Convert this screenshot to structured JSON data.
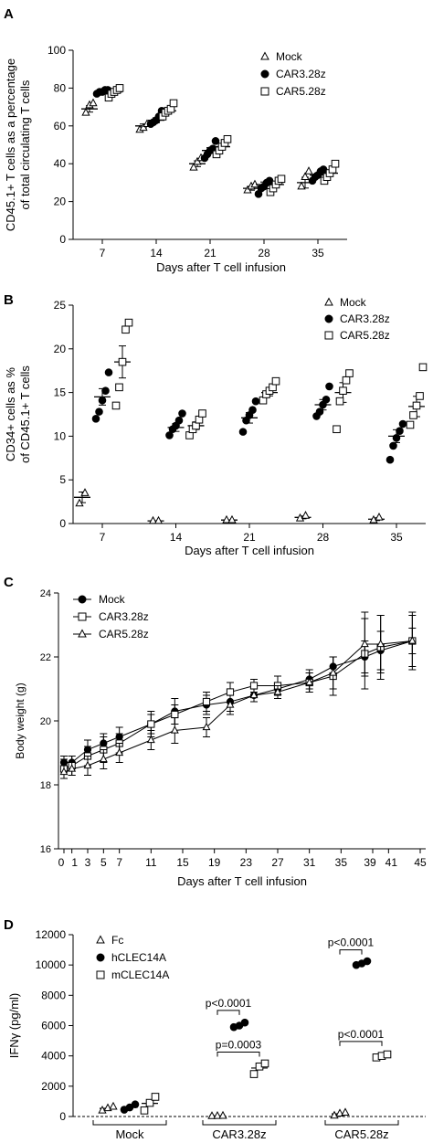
{
  "chart_data": [
    {
      "panel_label": "A",
      "type": "scatter",
      "xlabel": "Days after T cell infusion",
      "ylabel": "CD45.1+ T cells as a percentage of total circulating T cells",
      "ylabel_lines": [
        "CD45.1+ T cells as a percentage",
        "of total circulating T cells"
      ],
      "categories": [
        "7",
        "14",
        "21",
        "28",
        "35"
      ],
      "ylim": [
        0,
        100
      ],
      "yticks": [
        0,
        20,
        40,
        60,
        80,
        100
      ],
      "legend": "top-right",
      "series": [
        {
          "name": "Mock",
          "marker": "triangle-open",
          "means": [
            69,
            60,
            40,
            27,
            30
          ],
          "points": [
            [
              67,
              71,
              72
            ],
            [
              58,
              59,
              61
            ],
            [
              38,
              41,
              43
            ],
            [
              26,
              28,
              29
            ],
            [
              28,
              33,
              36
            ]
          ]
        },
        {
          "name": "CAR3.28z",
          "marker": "circle-filled",
          "means": [
            78,
            63,
            47,
            29,
            34
          ],
          "points": [
            [
              77,
              78,
              78,
              79,
              79
            ],
            [
              61,
              62,
              63,
              65,
              68
            ],
            [
              43,
              45,
              47,
              48,
              52
            ],
            [
              24,
              27,
              28,
              30,
              31
            ],
            [
              31,
              33,
              34,
              36,
              37
            ]
          ]
        },
        {
          "name": "CAR5.28z",
          "marker": "square-open",
          "means": [
            78,
            68,
            49,
            29,
            35
          ],
          "points": [
            [
              75,
              77,
              78,
              79,
              80
            ],
            [
              65,
              67,
              68,
              69,
              72
            ],
            [
              45,
              47,
              49,
              51,
              53
            ],
            [
              25,
              27,
              29,
              31,
              32
            ],
            [
              31,
              33,
              35,
              37,
              40
            ]
          ]
        }
      ]
    },
    {
      "panel_label": "B",
      "type": "scatter",
      "xlabel": "Days after T cell infusion",
      "ylabel": "CD34+ cells as % of CD45.1+ T cells",
      "ylabel_lines": [
        "CD34+ cells as %",
        "of CD45.1+ T cells"
      ],
      "categories": [
        "7",
        "14",
        "21",
        "28",
        "35"
      ],
      "ylim": [
        0,
        25
      ],
      "yticks": [
        0,
        5,
        10,
        15,
        20,
        25
      ],
      "legend": "top-right",
      "series": [
        {
          "name": "Mock",
          "marker": "triangle-open",
          "means": [
            3.0,
            0.3,
            0.4,
            0.7,
            0.5
          ],
          "points": [
            [
              2.3,
              3.5
            ],
            [
              0.3,
              0.3
            ],
            [
              0.4,
              0.4
            ],
            [
              0.6,
              0.9
            ],
            [
              0.4,
              0.7
            ]
          ]
        },
        {
          "name": "CAR3.28z",
          "marker": "circle-filled",
          "means": [
            14.5,
            11.0,
            12.1,
            13.6,
            10.0
          ],
          "points": [
            [
              12.0,
              12.8,
              14.1,
              15.2,
              17.3
            ],
            [
              10.1,
              10.8,
              11.2,
              11.8,
              12.6
            ],
            [
              10.5,
              11.8,
              12.4,
              13.0,
              14.0
            ],
            [
              12.3,
              12.8,
              13.6,
              14.2,
              15.7
            ],
            [
              7.3,
              8.9,
              9.8,
              10.6,
              11.4
            ]
          ]
        },
        {
          "name": "CAR5.28z",
          "marker": "square-open",
          "means": [
            18.5,
            11.2,
            15.0,
            15.0,
            13.4
          ],
          "points": [
            [
              13.5,
              15.6,
              18.5,
              22.2,
              23.0
            ],
            [
              10.1,
              10.8,
              11.2,
              11.9,
              12.6
            ],
            [
              14.1,
              14.8,
              15.2,
              15.6,
              16.3
            ],
            [
              10.8,
              14.0,
              15.2,
              16.4,
              17.2
            ],
            [
              11.3,
              12.4,
              13.5,
              14.6,
              17.9
            ]
          ]
        }
      ]
    },
    {
      "panel_label": "C",
      "type": "line",
      "xlabel": "Days after T cell infusion",
      "ylabel": "Body weight (g)",
      "x_tick_labels": [
        "0",
        "1",
        "3",
        "5",
        "7",
        "11",
        "15",
        "19",
        "23",
        "27",
        "31",
        "35",
        "39",
        "41",
        "45"
      ],
      "x_tick_values": [
        0,
        1,
        3,
        5,
        7,
        11,
        15,
        19,
        23,
        27,
        31,
        35,
        39,
        41,
        45
      ],
      "xlim": [
        0,
        45
      ],
      "ylim": [
        16,
        24
      ],
      "yticks": [
        16,
        18,
        20,
        22,
        24
      ],
      "legend": "top-left",
      "series": [
        {
          "name": "Mock",
          "marker": "circle-filled",
          "x": [
            0,
            1,
            3,
            5,
            7,
            11,
            14,
            18,
            21,
            24,
            27,
            31,
            34,
            38,
            40,
            44
          ],
          "y": [
            18.7,
            18.7,
            19.1,
            19.3,
            19.5,
            19.9,
            20.3,
            20.5,
            20.6,
            20.8,
            21.0,
            21.3,
            21.7,
            22.0,
            22.2,
            22.5
          ],
          "err": [
            0.2,
            0.2,
            0.3,
            0.3,
            0.3,
            0.4,
            0.4,
            0.3,
            0.3,
            0.2,
            0.2,
            0.3,
            0.3,
            0.5,
            0.6,
            0.4
          ]
        },
        {
          "name": "CAR3.28z",
          "marker": "square-open",
          "x": [
            0,
            1,
            3,
            5,
            7,
            11,
            14,
            18,
            21,
            24,
            27,
            31,
            34,
            38,
            40,
            44
          ],
          "y": [
            18.5,
            18.6,
            18.9,
            19.1,
            19.3,
            19.9,
            20.2,
            20.6,
            20.9,
            21.1,
            21.1,
            21.2,
            21.4,
            22.1,
            22.3,
            22.5
          ],
          "err": [
            0.3,
            0.3,
            0.3,
            0.4,
            0.3,
            0.3,
            0.3,
            0.3,
            0.3,
            0.2,
            0.3,
            0.3,
            0.6,
            1.1,
            1.0,
            0.9
          ]
        },
        {
          "name": "CAR5.28z",
          "marker": "triangle-open",
          "x": [
            0,
            1,
            3,
            5,
            7,
            11,
            14,
            18,
            21,
            24,
            27,
            31,
            34,
            38,
            40,
            44
          ],
          "y": [
            18.4,
            18.5,
            18.6,
            18.8,
            19.0,
            19.4,
            19.7,
            19.8,
            20.5,
            20.8,
            20.9,
            21.2,
            21.5,
            22.4,
            22.4,
            22.5
          ],
          "err": [
            0.2,
            0.2,
            0.3,
            0.3,
            0.3,
            0.3,
            0.4,
            0.3,
            0.3,
            0.2,
            0.2,
            0.3,
            0.5,
            1.0,
            0.9,
            0.8
          ]
        }
      ]
    },
    {
      "panel_label": "D",
      "type": "scatter",
      "xlabel": "",
      "ylabel": "IFNγ (pg/ml)",
      "categories": [
        "Mock",
        "CAR3.28z",
        "CAR5.28z"
      ],
      "ylim": [
        0,
        12000
      ],
      "yticks": [
        0,
        2000,
        4000,
        6000,
        8000,
        10000,
        12000
      ],
      "legend": "top-left",
      "series": [
        {
          "name": "Fc",
          "marker": "triangle-open",
          "points": [
            [
              400,
              550,
              650
            ],
            [
              30,
              40,
              50
            ],
            [
              60,
              200,
              260
            ]
          ]
        },
        {
          "name": "hCLEC14A",
          "marker": "circle-filled",
          "points": [
            [
              450,
              600,
              800
            ],
            [
              5900,
              6000,
              6200
            ],
            [
              10000,
              10100,
              10250
            ]
          ]
        },
        {
          "name": "mCLEC14A",
          "marker": "square-open",
          "points": [
            [
              400,
              900,
              1300
            ],
            [
              2800,
              3300,
              3500
            ],
            [
              3900,
              4000,
              4100
            ]
          ]
        }
      ],
      "comparisons": [
        {
          "group": "CAR3.28z",
          "between": [
            "Fc",
            "hCLEC14A"
          ],
          "label": "p<0.0001",
          "y_value": 7000
        },
        {
          "group": "CAR3.28z",
          "between": [
            "Fc",
            "mCLEC14A"
          ],
          "label": "p=0.0003",
          "y_value": 4250
        },
        {
          "group": "CAR5.28z",
          "between": [
            "Fc",
            "hCLEC14A"
          ],
          "label": "p<0.0001",
          "y_value": 11000
        },
        {
          "group": "CAR5.28z",
          "between": [
            "Fc",
            "mCLEC14A"
          ],
          "label": "p<0.0001",
          "y_value": 4950
        }
      ]
    }
  ]
}
